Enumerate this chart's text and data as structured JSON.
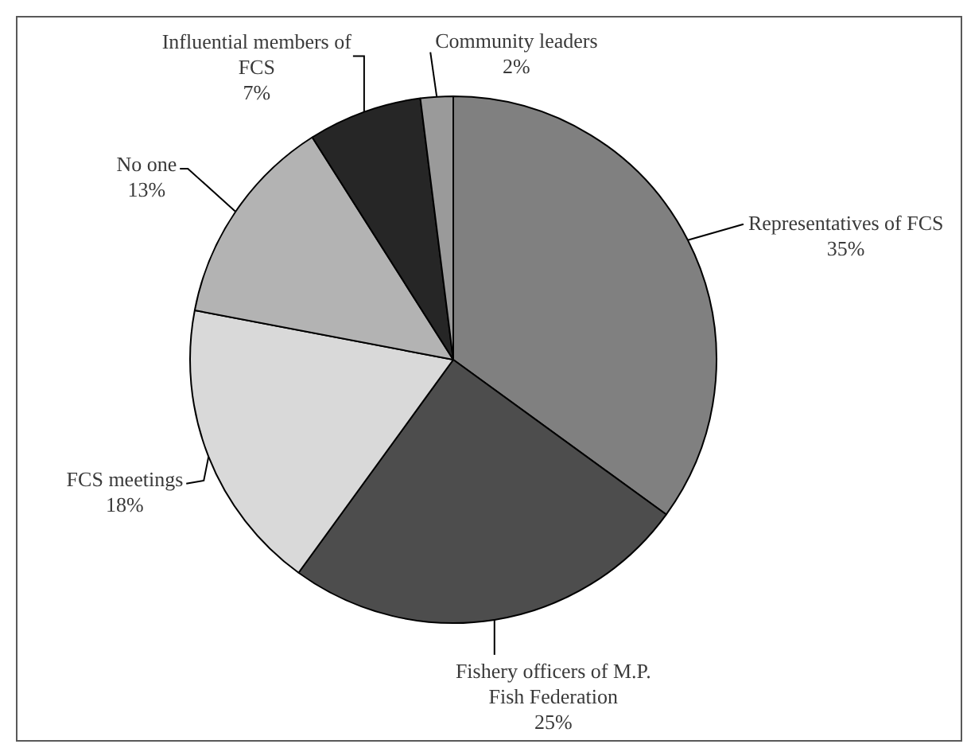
{
  "chart_data": {
    "type": "pie",
    "categories": [
      "Representatives of FCS",
      "Fishery officers of M.P. Fish Federation",
      "FCS meetings",
      "No one",
      "Influential members of FCS",
      "Community leaders"
    ],
    "values": [
      35,
      25,
      18,
      13,
      7,
      2
    ],
    "value_labels": [
      "35%",
      "25%",
      "18%",
      "13%",
      "7%",
      "2%"
    ],
    "colors": [
      "#808080",
      "#4d4d4d",
      "#d9d9d9",
      "#b3b3b3",
      "#262626",
      "#9a9a9a"
    ]
  }
}
